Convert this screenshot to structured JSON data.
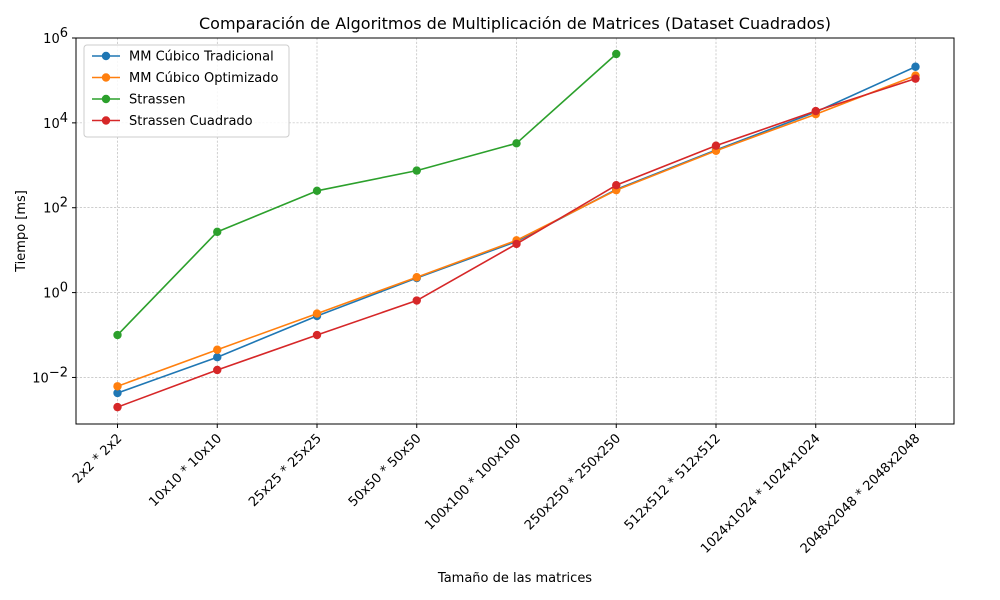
{
  "chart_data": {
    "type": "line",
    "title": "Comparación de Algoritmos de Multiplicación de Matrices (Dataset Cuadrados)",
    "xlabel": "Tamaño de las matrices",
    "ylabel": "Tiempo [ms]",
    "yscale": "log",
    "ylim": [
      0.0008,
      1000000
    ],
    "yticks": [
      {
        "value": 0.01,
        "base": "10",
        "exp": "−2"
      },
      {
        "value": 1,
        "base": "10",
        "exp": "0"
      },
      {
        "value": 100,
        "base": "10",
        "exp": "2"
      },
      {
        "value": 10000,
        "base": "10",
        "exp": "4"
      },
      {
        "value": 1000000,
        "base": "10",
        "exp": "6"
      }
    ],
    "grid": true,
    "legend_position": "top-left",
    "categories": [
      "2x2 * 2x2",
      "10x10 * 10x10",
      "25x25 * 25x25",
      "50x50 * 50x50",
      "100x100 * 100x100",
      "250x250 * 250x250",
      "512x512 * 512x512",
      "1024x1024 * 1024x1024",
      "2048x2048 * 2048x2048"
    ],
    "series": [
      {
        "name": "MM Cúbico Tradicional",
        "color": "#1f77b4",
        "values": [
          0.0043,
          0.03,
          0.28,
          2.2,
          16,
          270,
          2300,
          18000,
          210000
        ]
      },
      {
        "name": "MM Cúbico Optimizado",
        "color": "#ff7f0e",
        "values": [
          0.0062,
          0.045,
          0.32,
          2.3,
          17,
          260,
          2200,
          16000,
          130000
        ]
      },
      {
        "name": "Strassen",
        "color": "#2ca02c",
        "values": [
          0.1,
          27,
          250,
          750,
          3300,
          420000,
          null,
          null,
          null
        ]
      },
      {
        "name": "Strassen Cuadrado",
        "color": "#d62728",
        "values": [
          0.002,
          0.015,
          0.1,
          0.65,
          14,
          340,
          2900,
          19000,
          110000
        ]
      }
    ]
  }
}
